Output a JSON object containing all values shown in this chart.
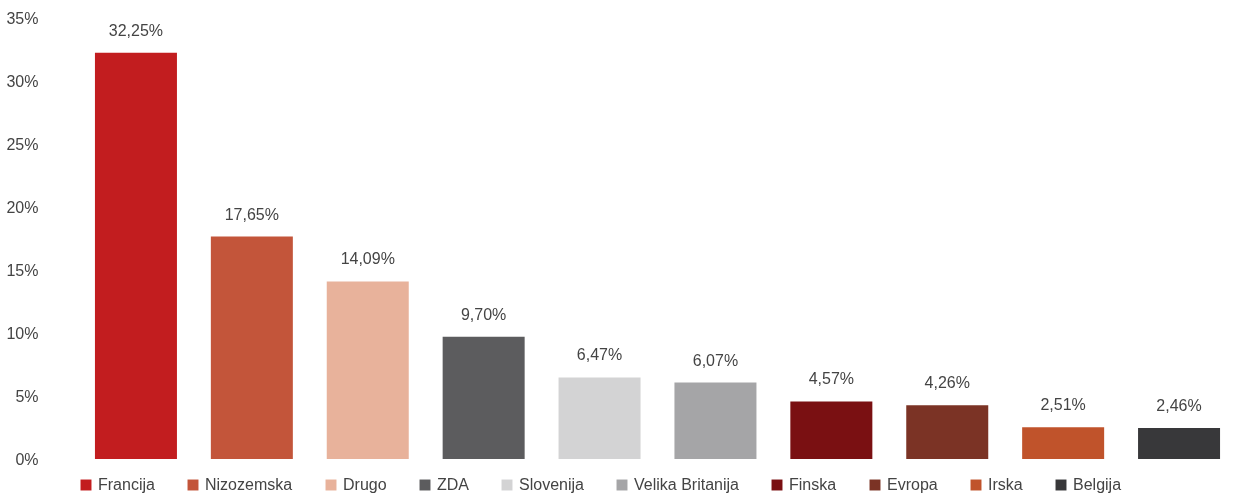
{
  "chart_data": {
    "type": "bar",
    "categories": [
      null,
      null,
      null,
      null,
      null,
      null,
      null,
      null,
      null,
      null
    ],
    "series": [
      {
        "name": "Francija",
        "color": "#c21d1f",
        "values": [
          32.25,
          null,
          null,
          null,
          null,
          null,
          null,
          null,
          null,
          null
        ],
        "value_labels": [
          "32,25%",
          null,
          null,
          null,
          null,
          null,
          null,
          null,
          null,
          null
        ]
      },
      {
        "name": "Nizozemska",
        "color": "#c3553a",
        "values": [
          null,
          17.65,
          null,
          null,
          null,
          null,
          null,
          null,
          null,
          null
        ],
        "value_labels": [
          null,
          "17,65%",
          null,
          null,
          null,
          null,
          null,
          null,
          null,
          null
        ]
      },
      {
        "name": "Drugo",
        "color": "#e8b29b",
        "values": [
          null,
          null,
          14.09,
          null,
          null,
          null,
          null,
          null,
          null,
          null
        ],
        "value_labels": [
          null,
          null,
          "14,09%",
          null,
          null,
          null,
          null,
          null,
          null,
          null
        ]
      },
      {
        "name": "ZDA",
        "color": "#5c5c5e",
        "values": [
          null,
          null,
          null,
          9.7,
          null,
          null,
          null,
          null,
          null,
          null
        ],
        "value_labels": [
          null,
          null,
          null,
          "9,70%",
          null,
          null,
          null,
          null,
          null,
          null
        ]
      },
      {
        "name": "Slovenija",
        "color": "#d3d3d4",
        "values": [
          null,
          null,
          null,
          null,
          6.47,
          null,
          null,
          null,
          null,
          null
        ],
        "value_labels": [
          null,
          null,
          null,
          null,
          "6,47%",
          null,
          null,
          null,
          null,
          null
        ]
      },
      {
        "name": "Velika Britanija",
        "color": "#a5a5a7",
        "values": [
          null,
          null,
          null,
          null,
          null,
          6.07,
          null,
          null,
          null,
          null
        ],
        "value_labels": [
          null,
          null,
          null,
          null,
          null,
          "6,07%",
          null,
          null,
          null,
          null
        ]
      },
      {
        "name": "Finska",
        "color": "#7a1012",
        "values": [
          null,
          null,
          null,
          null,
          null,
          null,
          4.57,
          null,
          null,
          null
        ],
        "value_labels": [
          null,
          null,
          null,
          null,
          null,
          null,
          "4,57%",
          null,
          null,
          null
        ]
      },
      {
        "name": "Evropa",
        "color": "#7b3325",
        "values": [
          null,
          null,
          null,
          null,
          null,
          null,
          null,
          4.26,
          null,
          null
        ],
        "value_labels": [
          null,
          null,
          null,
          null,
          null,
          null,
          null,
          "4,26%",
          null,
          null
        ]
      },
      {
        "name": "Irska",
        "color": "#c0532b",
        "values": [
          null,
          null,
          null,
          null,
          null,
          null,
          null,
          null,
          2.51,
          null
        ],
        "value_labels": [
          null,
          null,
          null,
          null,
          null,
          null,
          null,
          null,
          "2,51%",
          null
        ]
      },
      {
        "name": "Belgija",
        "color": "#38383a",
        "values": [
          null,
          null,
          null,
          null,
          null,
          null,
          null,
          null,
          null,
          2.46
        ],
        "value_labels": [
          null,
          null,
          null,
          null,
          null,
          null,
          null,
          null,
          null,
          "2,46%"
        ]
      }
    ],
    "ylim": [
      0,
      35
    ],
    "yticks": [
      {
        "value": 0,
        "label": "0%"
      },
      {
        "value": 5,
        "label": "5%"
      },
      {
        "value": 10,
        "label": "10%"
      },
      {
        "value": 15,
        "label": "15%"
      },
      {
        "value": 20,
        "label": "20%"
      },
      {
        "value": 25,
        "label": "25%"
      },
      {
        "value": 30,
        "label": "30%"
      },
      {
        "value": 35,
        "label": "35%"
      }
    ],
    "stacked": true,
    "tick_labels": "y",
    "grid": false,
    "legend": "bottom"
  }
}
